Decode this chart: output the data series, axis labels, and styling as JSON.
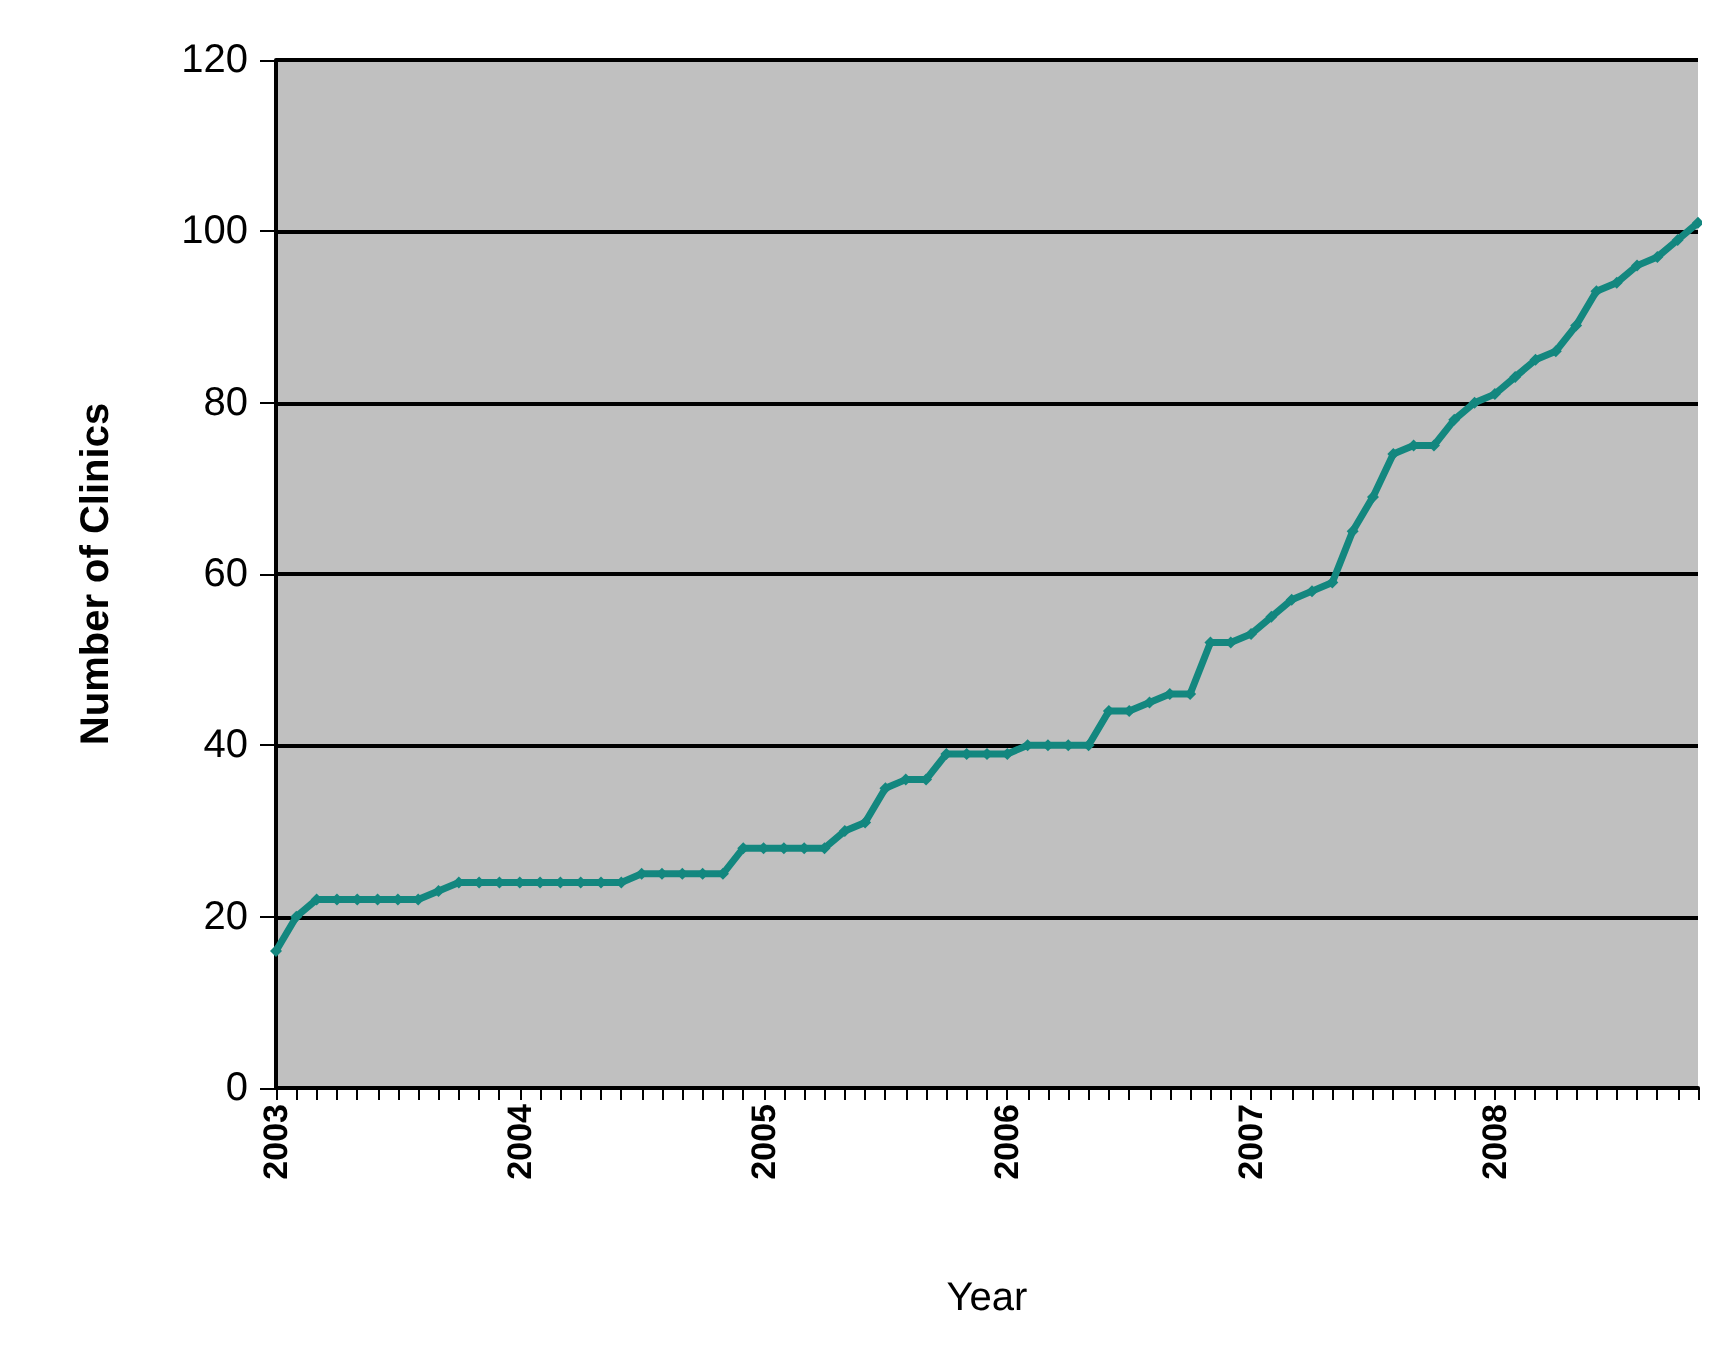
{
  "chart_data": {
    "type": "line",
    "xlabel": "Year",
    "ylabel": "Number of Clinics",
    "categories": [
      "2003",
      null,
      null,
      null,
      null,
      null,
      null,
      null,
      null,
      null,
      null,
      null,
      "2004",
      null,
      null,
      null,
      null,
      null,
      null,
      null,
      null,
      null,
      null,
      null,
      "2005",
      null,
      null,
      null,
      null,
      null,
      null,
      null,
      null,
      null,
      null,
      null,
      "2006",
      null,
      null,
      null,
      null,
      null,
      null,
      null,
      null,
      null,
      null,
      null,
      "2007",
      null,
      null,
      null,
      null,
      null,
      null,
      null,
      null,
      null,
      null,
      null,
      "2008",
      null,
      null,
      null,
      null,
      null,
      null,
      null,
      null,
      null,
      null
    ],
    "series": [
      {
        "color": "#13877f",
        "values": [
          16,
          20,
          22,
          22,
          22,
          22,
          22,
          22,
          23,
          24,
          24,
          24,
          24,
          24,
          24,
          24,
          24,
          24,
          25,
          25,
          25,
          25,
          25,
          28,
          28,
          28,
          28,
          28,
          30,
          31,
          35,
          36,
          36,
          39,
          39,
          39,
          39,
          40,
          40,
          40,
          40,
          44,
          44,
          45,
          46,
          46,
          52,
          52,
          53,
          55,
          57,
          58,
          59,
          65,
          69,
          74,
          75,
          75,
          78,
          80,
          81,
          83,
          85,
          86,
          89,
          93,
          94,
          96,
          97,
          99,
          101
        ]
      }
    ],
    "ylim": [
      0,
      120
    ],
    "yticks": [
      0,
      20,
      40,
      60,
      80,
      100,
      120
    ],
    "grid": "y",
    "marker": "diamond",
    "line_style": "solid"
  }
}
